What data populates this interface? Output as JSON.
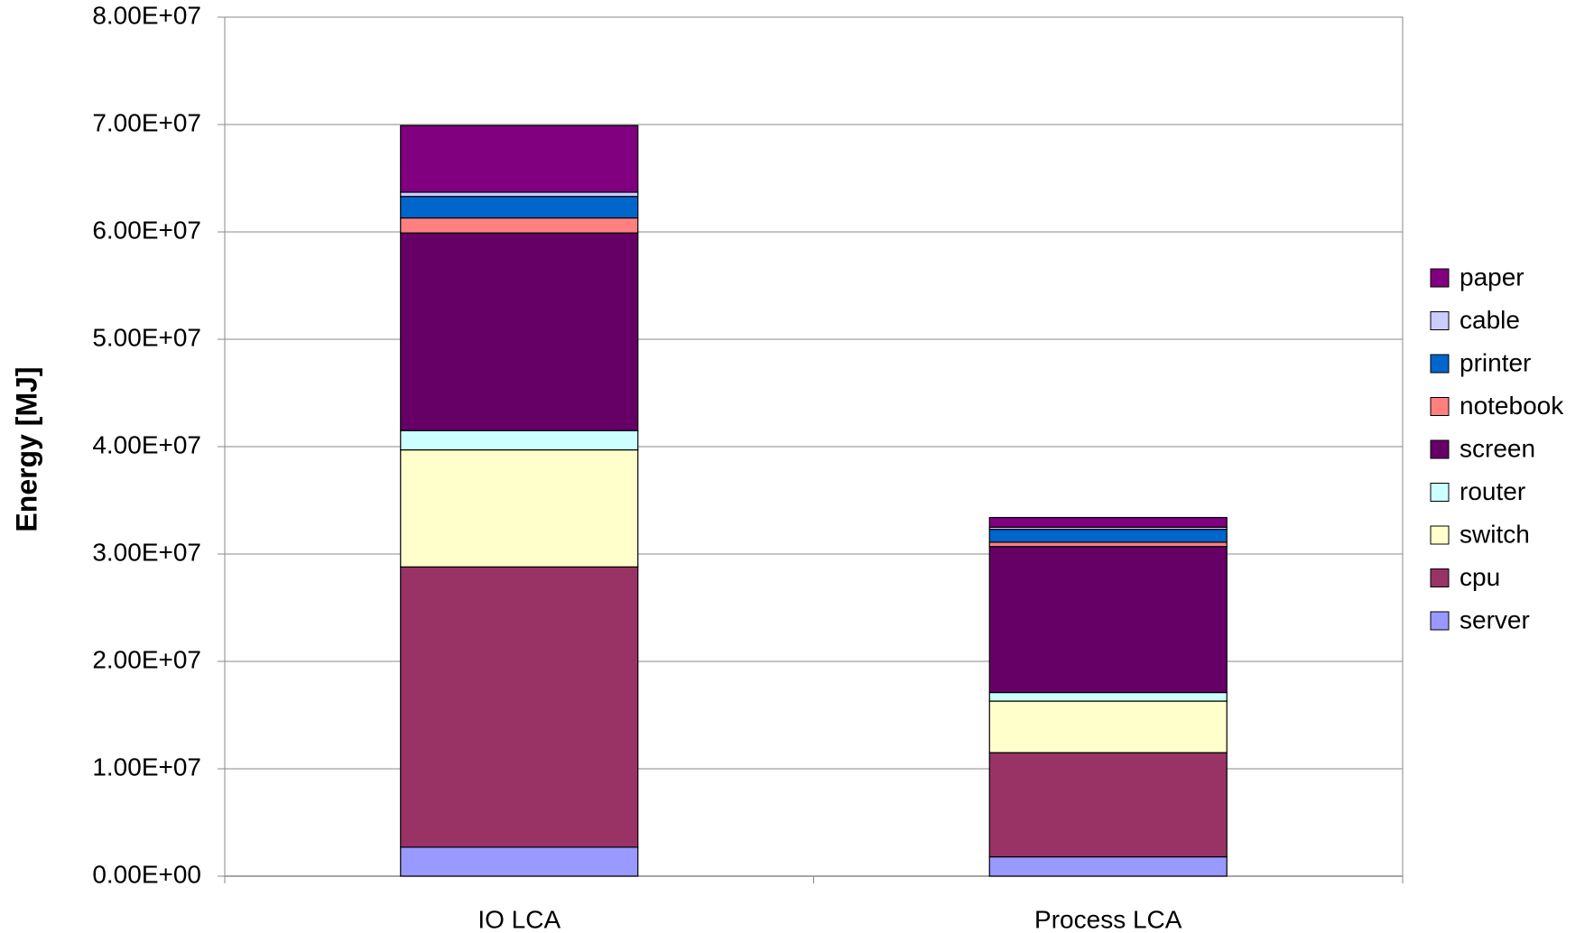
{
  "chart_data": {
    "type": "stacked-bar",
    "y_label": "Energy [MJ]",
    "categories": [
      "IO LCA",
      "Process LCA"
    ],
    "series": [
      {
        "name": "server",
        "color": "#9999ff",
        "values": [
          2700000,
          1800000
        ]
      },
      {
        "name": "cpu",
        "color": "#993366",
        "values": [
          26100000,
          9700000
        ]
      },
      {
        "name": "switch",
        "color": "#ffffcc",
        "values": [
          10900000,
          4800000
        ]
      },
      {
        "name": "router",
        "color": "#ccffff",
        "values": [
          1800000,
          800000
        ]
      },
      {
        "name": "screen",
        "color": "#660066",
        "values": [
          18400000,
          13600000
        ]
      },
      {
        "name": "notebook",
        "color": "#ff8080",
        "values": [
          1400000,
          400000
        ]
      },
      {
        "name": "printer",
        "color": "#0066cc",
        "values": [
          2000000,
          1200000
        ]
      },
      {
        "name": "cable",
        "color": "#ccccff",
        "values": [
          400000,
          200000
        ]
      },
      {
        "name": "paper",
        "color": "#800080",
        "values": [
          6200000,
          900000
        ]
      }
    ],
    "ylim": [
      0,
      80000000
    ],
    "yticks": [
      {
        "value": 0,
        "label": "0.00E+00"
      },
      {
        "value": 10000000,
        "label": "1.00E+07"
      },
      {
        "value": 20000000,
        "label": "2.00E+07"
      },
      {
        "value": 30000000,
        "label": "3.00E+07"
      },
      {
        "value": 40000000,
        "label": "4.00E+07"
      },
      {
        "value": 50000000,
        "label": "5.00E+07"
      },
      {
        "value": 60000000,
        "label": "6.00E+07"
      },
      {
        "value": 70000000,
        "label": "7.00E+07"
      },
      {
        "value": 80000000,
        "label": "8.00E+07"
      }
    ],
    "grid": true,
    "legend": "right"
  }
}
